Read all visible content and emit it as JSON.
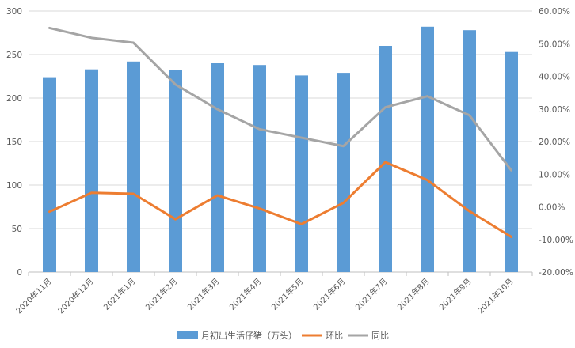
{
  "chart_data": {
    "type": "bar",
    "categories": [
      "2020年11月",
      "2020年12月",
      "2021年1月",
      "2021年2月",
      "2021年3月",
      "2021年4月",
      "2021年5月",
      "2021年6月",
      "2021年7月",
      "2021年8月",
      "2021年9月",
      "2021年10月"
    ],
    "series": [
      {
        "name": "月初出生活仔猪（万头）",
        "type": "bar",
        "axis": "left",
        "color": "#5b9bd5",
        "values": [
          224,
          233,
          242,
          232,
          240,
          238,
          226,
          229,
          260,
          282,
          278,
          253
        ]
      },
      {
        "name": "环比",
        "type": "line",
        "axis": "right",
        "color": "#ed7d31",
        "values": [
          -1.5,
          4.3,
          4.0,
          -3.8,
          3.5,
          -0.5,
          -5.3,
          1.2,
          13.7,
          8.2,
          -1.3,
          -9.2
        ]
      },
      {
        "name": "同比",
        "type": "line",
        "axis": "right",
        "color": "#a5a5a5",
        "values": [
          54.8,
          51.8,
          50.3,
          37.5,
          29.9,
          23.8,
          21.2,
          18.6,
          30.5,
          33.9,
          28.1,
          11.2
        ]
      }
    ],
    "left_axis": {
      "ylim": [
        0,
        300
      ],
      "ticks": [
        "0",
        "50",
        "100",
        "150",
        "200",
        "250",
        "300"
      ]
    },
    "right_axis": {
      "ylim": [
        -20,
        60
      ],
      "ticks": [
        "-20.00%",
        "-10.00%",
        "0.00%",
        "10.00%",
        "20.00%",
        "30.00%",
        "40.00%",
        "50.00%",
        "60.00%"
      ]
    },
    "grid": true,
    "legend_position": "bottom",
    "title": "",
    "xlabel": "",
    "ylabel": ""
  }
}
